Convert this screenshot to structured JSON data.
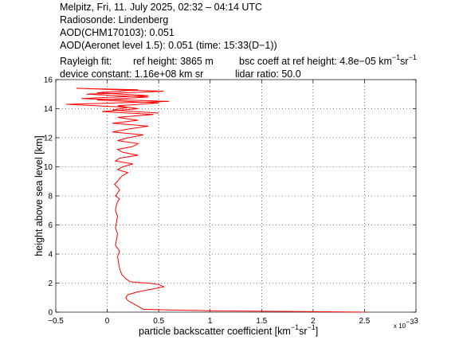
{
  "header": {
    "line1": "Melpitz, Fri, 11. July 2025, 02:32 – 04:14 UTC",
    "line2": "Radiosonde: Lindenberg",
    "line3": "AOD(CHM170103): 0.051",
    "line4": "AOD(Aeronet level 1.5): 0.051   (time: 15:33(D−1))",
    "rayleigh_fit": "Rayleigh fit:",
    "ref_height": "ref height: 3865 m",
    "bsc_coeff_prefix": "bsc coeff at ref height: 4.8e−05 km",
    "bsc_coeff_sup1": "−1",
    "bsc_coeff_mid": "sr",
    "bsc_coeff_sup2": "−1",
    "device_constant": "device constant: 1.16e+08 km sr",
    "lidar_ratio": "lidar ratio: 50.0"
  },
  "chart_data": {
    "type": "line",
    "title": "",
    "xlabel_prefix": "particle backscatter coefficient [km",
    "xlabel_sup1": "−1",
    "xlabel_mid": "sr",
    "xlabel_sup2": "−1",
    "xlabel_suffix": "]",
    "x_multiplier": "x 10",
    "x_multiplier_exp": "−3",
    "ylabel": "height above sea level [km]",
    "xlim": [
      -0.5,
      3.0
    ],
    "ylim": [
      0,
      16
    ],
    "xticks": [
      -0.5,
      0,
      0.5,
      1,
      1.5,
      2,
      2.5,
      3
    ],
    "xtick_labels": [
      "−0.5",
      "0",
      "0.5",
      "1",
      "1.5",
      "2",
      "2.5",
      "3"
    ],
    "yticks": [
      0,
      2,
      4,
      6,
      8,
      10,
      12,
      14,
      16
    ],
    "ytick_labels": [
      "0",
      "2",
      "4",
      "6",
      "8",
      "10",
      "12",
      "14",
      "16"
    ],
    "grid": true,
    "line_color": "#ff0000",
    "series": [
      {
        "x": [
          2.5,
          1.8,
          1.0,
          0.6,
          0.35,
          0.3,
          0.25,
          0.2,
          0.18,
          0.2,
          0.3,
          0.45,
          0.55,
          0.5,
          0.4,
          0.28,
          0.22,
          0.18,
          0.14,
          0.12,
          0.11,
          0.1,
          0.12,
          0.08,
          0.09,
          0.1,
          0.08,
          0.09,
          0.1,
          0.08,
          0.09,
          0.1,
          0.12,
          0.08,
          0.1,
          0.12,
          0.1,
          0.07,
          0.1,
          0.12,
          0.15,
          0.2,
          0.1,
          0.15,
          0.25,
          0.08,
          0.12,
          0.3,
          0.15,
          0.1,
          0.25,
          0.3,
          0.1,
          0.2,
          0.35,
          0.05,
          0.2,
          0.4,
          0.05,
          0.3,
          0.1,
          0.45,
          -0.05,
          0.3,
          0.1,
          0.5,
          -0.1,
          0.4,
          -0.2,
          0.55,
          -0.3,
          0.3,
          -0.1,
          0.4,
          -0.25,
          0.6,
          -0.4,
          0.2,
          0.05,
          0.5
        ],
        "y": [
          0.0,
          0.05,
          0.1,
          0.15,
          0.2,
          0.4,
          0.6,
          0.8,
          1.0,
          1.2,
          1.4,
          1.6,
          1.75,
          1.9,
          2.0,
          2.05,
          2.1,
          2.3,
          2.6,
          3.0,
          3.4,
          3.8,
          4.2,
          4.6,
          5.0,
          5.4,
          5.8,
          6.2,
          6.6,
          7.0,
          7.4,
          7.6,
          7.8,
          8.0,
          8.2,
          8.4,
          8.6,
          8.8,
          9.0,
          9.2,
          9.4,
          9.6,
          9.8,
          10.0,
          10.2,
          10.4,
          10.6,
          10.8,
          11.0,
          11.2,
          11.4,
          11.6,
          11.8,
          12.0,
          12.2,
          12.4,
          12.6,
          12.8,
          13.0,
          13.2,
          13.4,
          13.6,
          13.8,
          14.0,
          14.2,
          14.4,
          14.6,
          14.8,
          15.0,
          15.2,
          15.4,
          15.3,
          15.1,
          14.9,
          14.7,
          14.5,
          14.3,
          14.1,
          13.9,
          13.7
        ]
      }
    ]
  }
}
